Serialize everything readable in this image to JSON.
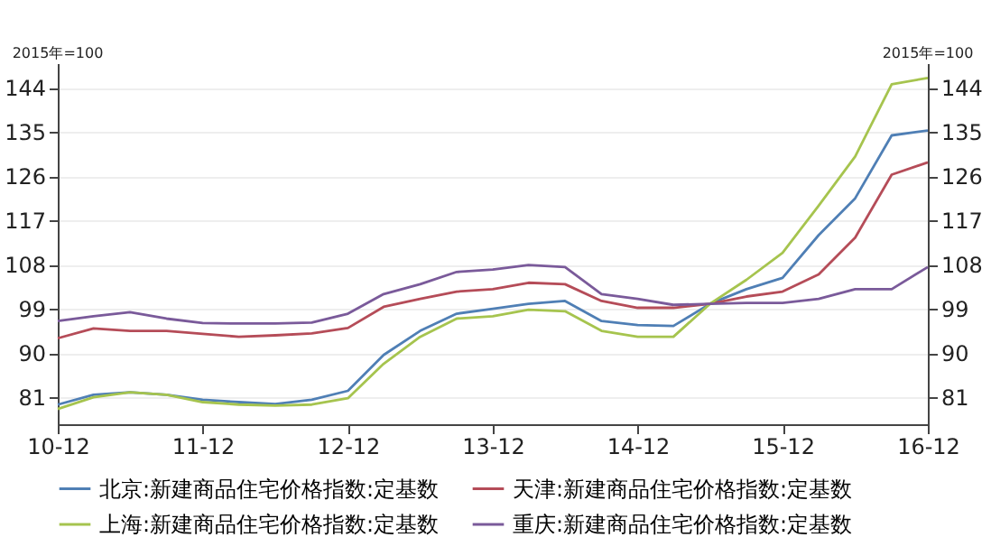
{
  "chart_data": {
    "type": "line",
    "x": [
      "2010-12",
      "2011-03",
      "2011-06",
      "2011-09",
      "2011-12",
      "2012-03",
      "2012-06",
      "2012-09",
      "2012-12",
      "2013-03",
      "2013-06",
      "2013-09",
      "2013-12",
      "2014-03",
      "2014-06",
      "2014-09",
      "2014-12",
      "2015-03",
      "2015-06",
      "2015-09",
      "2015-12",
      "2016-03",
      "2016-06",
      "2016-09",
      "2016-12"
    ],
    "series": [
      {
        "name": "北京:新建商品住宅价格指数:定基数",
        "color": "#4f7fb5",
        "values": [
          79.5,
          81.5,
          82,
          81.5,
          80.5,
          80,
          79.6,
          80.5,
          82.3,
          89.6,
          94.5,
          98,
          99,
          100,
          100.6,
          96.5,
          95.7,
          95.5,
          100,
          103,
          105.3,
          114,
          121.5,
          134.3,
          135.3
        ]
      },
      {
        "name": "天津:新建商品住宅价格指数:定基数",
        "color": "#b54c58",
        "values": [
          93,
          95,
          94.5,
          94.5,
          93.9,
          93.3,
          93.6,
          94,
          95.1,
          99.4,
          101,
          102.5,
          103,
          104.3,
          104,
          100.6,
          99.2,
          99.2,
          100,
          101.5,
          102.5,
          106,
          113.5,
          126.3,
          128.8
        ]
      },
      {
        "name": "上海:新建商品住宅价格指数:定基数",
        "color": "#a6c44e",
        "values": [
          78.6,
          81,
          82,
          81.5,
          80,
          79.5,
          79.3,
          79.5,
          80.8,
          87.8,
          93.3,
          97,
          97.5,
          98.8,
          98.5,
          94.5,
          93.3,
          93.3,
          100,
          104.9,
          110.4,
          120,
          130,
          144.7,
          146
        ]
      },
      {
        "name": "重庆:新建商品住宅价格指数:定基数",
        "color": "#7a5a9a",
        "values": [
          96.5,
          97.5,
          98.3,
          97,
          96.1,
          96,
          96,
          96.2,
          98,
          102,
          104,
          106.5,
          107,
          107.9,
          107.5,
          102,
          101,
          99.8,
          100,
          100.2,
          100.2,
          101,
          103,
          103,
          107.5
        ]
      }
    ],
    "xlim": [
      "2010-12",
      "2016-12"
    ],
    "xticks": [
      {
        "value": "2010-12",
        "label": "10-12"
      },
      {
        "value": "2011-12",
        "label": "11-12"
      },
      {
        "value": "2012-12",
        "label": "12-12"
      },
      {
        "value": "2013-12",
        "label": "13-12"
      },
      {
        "value": "2014-12",
        "label": "14-12"
      },
      {
        "value": "2015-12",
        "label": "15-12"
      },
      {
        "value": "2016-12",
        "label": "16-12"
      }
    ],
    "ylim": [
      75.5,
      149
    ],
    "yticks": [
      81,
      90,
      99,
      108,
      117,
      126,
      135,
      144
    ],
    "y2lim": [
      75.5,
      149
    ],
    "y2ticks": [
      81,
      90,
      99,
      108,
      117,
      126,
      135,
      144
    ],
    "annotations": [
      "2015年=100",
      "2015年=100"
    ],
    "grid": "y",
    "legend": "bottom",
    "marker": "none",
    "line_style": "solid"
  }
}
